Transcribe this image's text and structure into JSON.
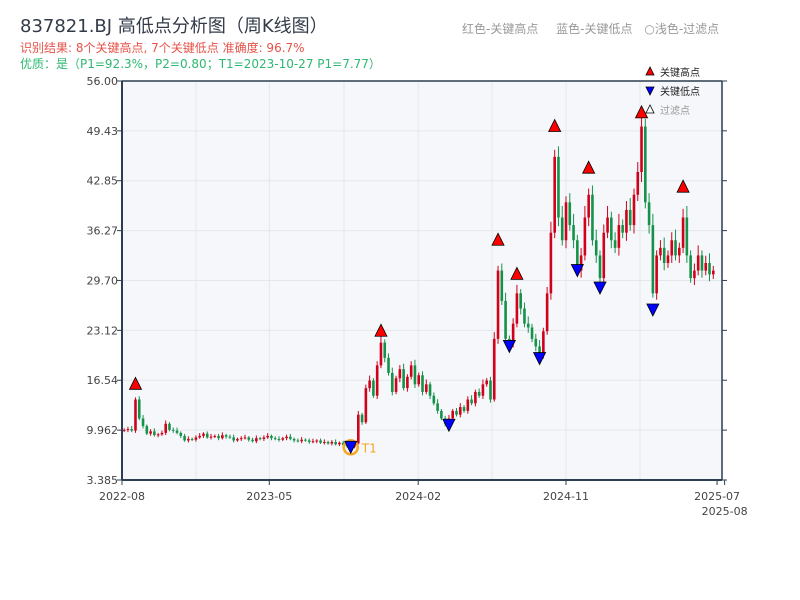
{
  "title": "837821.BJ 高低点分析图（周K线图）",
  "subtitle_result": "识别结果: 8个关键高点, 7个关键低点  准确度: 96.7%",
  "subtitle_quality": "优质：是（P1=92.3%，P2=0.80；T1=2023-10-27 P1=7.77）",
  "top_legend": [
    "红色-关键高点",
    "蓝色-关键低点",
    "○浅色-过滤点"
  ],
  "chart_data": {
    "type": "candlestick",
    "ylim": [
      3.385,
      56.0
    ],
    "yticks": [
      "3.385",
      "9.962",
      "16.54",
      "23.12",
      "29.70",
      "36.27",
      "42.85",
      "49.43",
      "56.00"
    ],
    "xticks": [
      {
        "label": "2022-08",
        "date": "2022-08-01"
      },
      {
        "label": "2023-05",
        "date": "2023-05-01"
      },
      {
        "label": "2024-02",
        "date": "2024-02-01"
      },
      {
        "label": "2024-11",
        "date": "2024-11-01"
      },
      {
        "label": "2025-07",
        "date": "2025-08-08"
      },
      {
        "label": "2025-08",
        "date": "2025-08-22"
      }
    ],
    "first_week": "2022-08-05",
    "weekly_close": [
      10.0,
      10.1,
      9.9,
      14.0,
      11.5,
      10.5,
      9.5,
      9.8,
      9.3,
      9.4,
      9.6,
      10.8,
      10.0,
      9.9,
      9.6,
      9.2,
      8.6,
      8.8,
      8.7,
      9.0,
      9.2,
      9.5,
      9.0,
      9.1,
      9.2,
      8.9,
      9.3,
      9.1,
      9.0,
      8.6,
      8.8,
      8.9,
      9.0,
      8.7,
      8.5,
      8.9,
      8.8,
      9.0,
      9.2,
      8.9,
      8.8,
      8.7,
      8.9,
      9.1,
      8.8,
      8.6,
      8.5,
      8.7,
      8.6,
      8.4,
      8.5,
      8.6,
      8.3,
      8.4,
      8.2,
      8.4,
      8.1,
      8.3,
      8.0,
      7.9,
      7.8,
      8.2,
      12.0,
      11.0,
      15.5,
      16.5,
      14.5,
      18.5,
      21.5,
      19.5,
      17.5,
      15.0,
      16.8,
      18.0,
      15.5,
      17.0,
      18.5,
      16.0,
      17.2,
      15.0,
      16.0,
      14.5,
      13.5,
      12.5,
      11.5,
      10.8,
      11.5,
      12.5,
      12.0,
      13.0,
      12.5,
      14.0,
      13.5,
      15.0,
      14.5,
      16.0,
      16.5,
      14.0,
      22.0,
      31.0,
      27.0,
      22.0,
      21.5,
      24.0,
      28.0,
      26.0,
      24.0,
      23.5,
      22.0,
      21.0,
      20.0,
      23.0,
      28.0,
      36.0,
      46.0,
      38.0,
      35.0,
      40.0,
      37.0,
      35.0,
      31.0,
      33.0,
      38.0,
      41.0,
      35.0,
      33.0,
      30.0,
      36.0,
      38.0,
      35.0,
      34.0,
      37.0,
      36.0,
      39.0,
      37.0,
      41.0,
      44.0,
      50.0,
      40.0,
      37.0,
      28.0,
      33.0,
      34.0,
      32.0,
      33.0,
      35.0,
      33.0,
      34.0,
      38.0,
      33.0,
      30.0,
      31.0,
      33.0,
      31.0,
      32.0,
      30.5,
      31.0
    ],
    "key_highs": [
      {
        "week": 3,
        "price": 16.0
      },
      {
        "week": 68,
        "price": 23.0
      },
      {
        "week": 99,
        "price": 35.0
      },
      {
        "week": 104,
        "price": 30.5
      },
      {
        "week": 114,
        "price": 50.0
      },
      {
        "week": 123,
        "price": 44.5
      },
      {
        "week": 137,
        "price": 51.8
      },
      {
        "week": 148,
        "price": 42.0
      }
    ],
    "key_lows": [
      {
        "week": 60,
        "price": 7.7,
        "label": "T1"
      },
      {
        "week": 86,
        "price": 10.6
      },
      {
        "week": 102,
        "price": 21.0
      },
      {
        "week": 110,
        "price": 19.4
      },
      {
        "week": 120,
        "price": 31.0
      },
      {
        "week": 126,
        "price": 28.7
      },
      {
        "week": 140,
        "price": 25.8
      }
    ],
    "legend": [
      "关键高点",
      "关键低点",
      "过滤点"
    ],
    "legend_placement": "top-right",
    "colors": {
      "up": "#d0021b",
      "down": "#15924a",
      "high_marker": "#ff0000",
      "low_marker": "#0000ff",
      "t1_ring": "#f5a623",
      "bg": "#f5f7fa",
      "grid": "#e3e7ec"
    },
    "grid": true
  }
}
